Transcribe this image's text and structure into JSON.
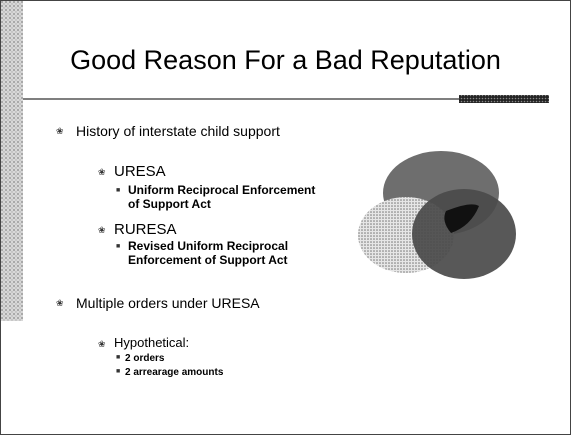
{
  "title": "Good Reason For a Bad Reputation",
  "bullets": [
    {
      "text": "History of interstate child support",
      "children": [
        {
          "text": "URESA",
          "children": [
            {
              "text": "Uniform Reciprocal Enforcement of Support Act"
            }
          ]
        },
        {
          "text": "RURESA",
          "children": [
            {
              "text": "Revised Uniform Reciprocal Enforcement of Support Act"
            }
          ]
        }
      ]
    },
    {
      "text": "Multiple orders under URESA",
      "children": [
        {
          "text": "Hypothetical:",
          "children": [
            {
              "text": "2 orders"
            },
            {
              "text": "2 arrearage amounts"
            }
          ]
        }
      ]
    }
  ]
}
